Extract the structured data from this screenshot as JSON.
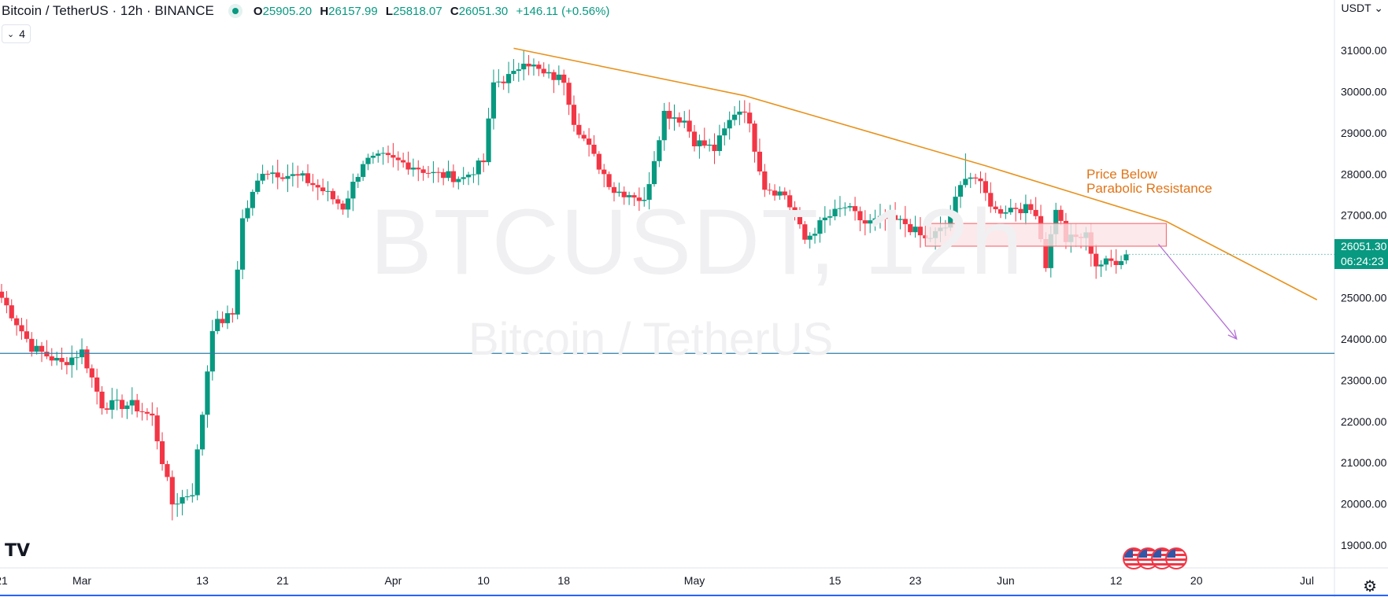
{
  "header": {
    "symbol": "Bitcoin / TetherUS · 12h · BINANCE",
    "ohlc": {
      "o_label": "O",
      "o": "25905.20",
      "h_label": "H",
      "h": "26157.99",
      "l_label": "L",
      "l": "25818.07",
      "c_label": "C",
      "c": "26051.30",
      "change": "+146.11 (+0.56%)"
    },
    "indicators_count": "4",
    "currency": "USDT"
  },
  "watermark": {
    "ticker": "BTCUSDT, 12h",
    "name": "Bitcoin / TetherUS"
  },
  "price_tag": {
    "price": "26051.30",
    "countdown": "06:24:23"
  },
  "annotation": [
    "Price Below",
    "Parabolic Resistance"
  ],
  "logo": "TV",
  "colors": {
    "up": "#089981",
    "down": "#f23645",
    "trendline": "#e8921c",
    "support_line": "#2e7ea6",
    "arrow": "#b36fd6",
    "zone_border": "#f4737c",
    "zone_fill": "#fbe4e6",
    "annotation": "#e07418"
  },
  "chart_data": {
    "type": "candlestick",
    "title": "Bitcoin / TetherUS · 12h · BINANCE",
    "interval": "12h",
    "y_axis": {
      "ticks": [
        19000,
        20000,
        21000,
        22000,
        23000,
        24000,
        25000,
        26000,
        27000,
        28000,
        29000,
        30000,
        31000
      ],
      "tick_labels": [
        "19000.00",
        "20000.00",
        "21000.00",
        "22000.00",
        "23000.00",
        "24000.00",
        "25000.00",
        "26000.00",
        "27000.00",
        "28000.00",
        "29000.00",
        "30000.00",
        "31000.00"
      ],
      "position": "right",
      "ylim": [
        18700,
        31600
      ]
    },
    "x_axis": {
      "tick_labels": [
        "21",
        "Mar",
        "13",
        "21",
        "Apr",
        "10",
        "18",
        "May",
        "15",
        "23",
        "Jun",
        "12",
        "20",
        "Jul"
      ],
      "tick_dates": [
        "2023-02-21",
        "2023-03-01",
        "2023-03-13",
        "2023-03-21",
        "2023-04-01",
        "2023-04-10",
        "2023-04-18",
        "2023-05-01",
        "2023-05-15",
        "2023-05-23",
        "2023-06-01",
        "2023-06-12",
        "2023-06-20",
        "2023-07-01"
      ],
      "range": [
        "2023-02-21",
        "2023-07-01"
      ]
    },
    "anchors": [
      [
        "2023-02-21",
        25000
      ],
      [
        "2023-02-24",
        23800
      ],
      [
        "2023-02-27",
        23400
      ],
      [
        "2023-03-01",
        23700
      ],
      [
        "2023-03-03",
        22400
      ],
      [
        "2023-03-06",
        22400
      ],
      [
        "2023-03-08",
        22100
      ],
      [
        "2023-03-10",
        20000
      ],
      [
        "2023-03-12",
        20300
      ],
      [
        "2023-03-13",
        22200
      ],
      [
        "2023-03-14",
        24300
      ],
      [
        "2023-03-16",
        24600
      ],
      [
        "2023-03-17",
        26900
      ],
      [
        "2023-03-19",
        28100
      ],
      [
        "2023-03-21",
        28000
      ],
      [
        "2023-03-23",
        27900
      ],
      [
        "2023-03-25",
        27600
      ],
      [
        "2023-03-27",
        27200
      ],
      [
        "2023-03-29",
        28300
      ],
      [
        "2023-03-31",
        28400
      ],
      [
        "2023-04-03",
        28200
      ],
      [
        "2023-04-05",
        28000
      ],
      [
        "2023-04-08",
        27900
      ],
      [
        "2023-04-10",
        28300
      ],
      [
        "2023-04-11",
        30200
      ],
      [
        "2023-04-13",
        30400
      ],
      [
        "2023-04-14",
        30800
      ],
      [
        "2023-04-16",
        30400
      ],
      [
        "2023-04-18",
        30300
      ],
      [
        "2023-04-19",
        29300
      ],
      [
        "2023-04-21",
        28400
      ],
      [
        "2023-04-23",
        27600
      ],
      [
        "2023-04-25",
        27500
      ],
      [
        "2023-04-26",
        27300
      ],
      [
        "2023-04-28",
        29500
      ],
      [
        "2023-04-30",
        29300
      ],
      [
        "2023-05-01",
        28800
      ],
      [
        "2023-05-03",
        28600
      ],
      [
        "2023-05-05",
        29500
      ],
      [
        "2023-05-06",
        29600
      ],
      [
        "2023-05-08",
        27700
      ],
      [
        "2023-05-10",
        27500
      ],
      [
        "2023-05-12",
        26400
      ],
      [
        "2023-05-14",
        26900
      ],
      [
        "2023-05-16",
        27200
      ],
      [
        "2023-05-18",
        26800
      ],
      [
        "2023-05-20",
        26900
      ],
      [
        "2023-05-22",
        26800
      ],
      [
        "2023-05-24",
        26400
      ],
      [
        "2023-05-26",
        26700
      ],
      [
        "2023-05-28",
        28000
      ],
      [
        "2023-05-29",
        27900
      ],
      [
        "2023-05-31",
        27100
      ],
      [
        "2023-06-02",
        27200
      ],
      [
        "2023-06-04",
        27100
      ],
      [
        "2023-06-05",
        25800
      ],
      [
        "2023-06-06",
        27200
      ],
      [
        "2023-06-07",
        26400
      ],
      [
        "2023-06-09",
        26500
      ],
      [
        "2023-06-10",
        25800
      ],
      [
        "2023-06-12",
        25900
      ],
      [
        "2023-06-13",
        26051
      ]
    ],
    "highs": [
      {
        "date": "2023-04-14",
        "value": 31000
      },
      {
        "date": "2023-05-28",
        "value": 28500
      },
      {
        "date": "2023-03-10",
        "value": 19600
      }
    ],
    "trendline": [
      [
        "2023-04-13",
        31050
      ],
      [
        "2023-05-06",
        29900
      ],
      [
        "2023-05-30",
        28200
      ],
      [
        "2023-06-17",
        26850
      ],
      [
        "2023-07-02",
        24950
      ]
    ],
    "support_level": 23650,
    "resistance_zone": {
      "from": "2023-05-24",
      "to": "2023-06-17",
      "low": 26250,
      "high": 26800
    },
    "projection_arrow": [
      [
        "2023-06-17",
        26300
      ],
      [
        "2023-06-24",
        24000
      ]
    ]
  }
}
